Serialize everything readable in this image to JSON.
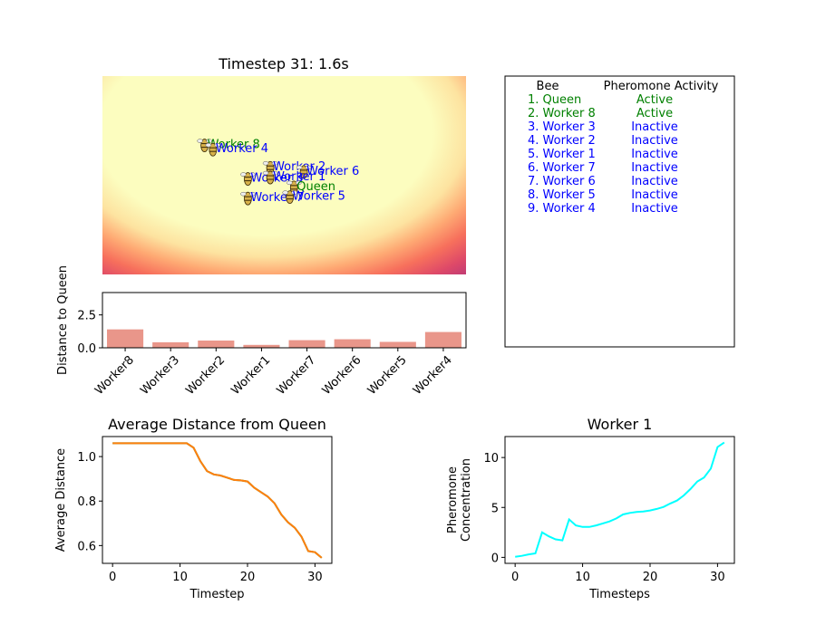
{
  "heatmap_panel": {
    "title": "Timestep 31: 1.6s",
    "bees": [
      {
        "label": "Worker 8",
        "color": "#008000",
        "x": 0.65,
        "y": 2.45
      },
      {
        "label": "Worker 4",
        "color": "#0000ff",
        "x": 0.95,
        "y": 2.6
      },
      {
        "label": "Worker 2",
        "color": "#0000ff",
        "x": 3.0,
        "y": 3.25
      },
      {
        "label": "Worker 6",
        "color": "#0000ff",
        "x": 4.2,
        "y": 3.4
      },
      {
        "label": "Worker 3",
        "color": "#0000ff",
        "x": 2.2,
        "y": 3.65
      },
      {
        "label": "Worker 1",
        "color": "#0000ff",
        "x": 3.0,
        "y": 3.6
      },
      {
        "label": "Queen",
        "color": "#008000",
        "x": 3.85,
        "y": 3.95
      },
      {
        "label": "Worker 7",
        "color": "#0000ff",
        "x": 2.2,
        "y": 4.35
      },
      {
        "label": "Worker 5",
        "color": "#0000ff",
        "x": 3.7,
        "y": 4.3
      }
    ]
  },
  "table_panel": {
    "headers": [
      "Bee",
      "Pheromone Activity"
    ],
    "rows": [
      {
        "name": "1. Queen",
        "status": "Active",
        "color": "#008000"
      },
      {
        "name": "2. Worker 8",
        "status": "Active",
        "color": "#008000"
      },
      {
        "name": "3. Worker 3",
        "status": "Inactive",
        "color": "#0000ff"
      },
      {
        "name": "4. Worker 2",
        "status": "Inactive",
        "color": "#0000ff"
      },
      {
        "name": "5. Worker 1",
        "status": "Inactive",
        "color": "#0000ff"
      },
      {
        "name": "6. Worker 7",
        "status": "Inactive",
        "color": "#0000ff"
      },
      {
        "name": "7. Worker 6",
        "status": "Inactive",
        "color": "#0000ff"
      },
      {
        "name": "8. Worker 5",
        "status": "Inactive",
        "color": "#0000ff"
      },
      {
        "name": "9. Worker 4",
        "status": "Inactive",
        "color": "#0000ff"
      }
    ]
  },
  "chart_data": [
    {
      "type": "bar",
      "title": "",
      "xlabel": "",
      "ylabel": "Distance to Queen",
      "categories": [
        "Worker8",
        "Worker3",
        "Worker2",
        "Worker1",
        "Worker7",
        "Worker6",
        "Worker5",
        "Worker4"
      ],
      "values": [
        1.4,
        0.42,
        0.55,
        0.22,
        0.58,
        0.65,
        0.45,
        1.2
      ],
      "ylim": [
        0,
        4.2
      ],
      "yticks": [
        "0.0",
        "2.5"
      ],
      "color": "#e9968a",
      "grid": false
    },
    {
      "type": "line",
      "title": "Average Distance from Queen",
      "xlabel": "Timestep",
      "ylabel": "Average Distance",
      "x": [
        0,
        1,
        2,
        3,
        4,
        5,
        6,
        7,
        8,
        9,
        10,
        11,
        12,
        13,
        14,
        15,
        16,
        17,
        18,
        19,
        20,
        21,
        22,
        23,
        24,
        25,
        26,
        27,
        28,
        29,
        30,
        31
      ],
      "series": [
        {
          "values": [
            1.06,
            1.06,
            1.06,
            1.06,
            1.06,
            1.06,
            1.06,
            1.06,
            1.06,
            1.06,
            1.06,
            1.06,
            1.04,
            0.98,
            0.935,
            0.92,
            0.915,
            0.905,
            0.895,
            0.893,
            0.888,
            0.86,
            0.84,
            0.82,
            0.79,
            0.74,
            0.705,
            0.68,
            0.64,
            0.575,
            0.57,
            0.545
          ],
          "color": "#2ca02c"
        },
        {
          "values": [
            1.06,
            1.06,
            1.06,
            1.06,
            1.06,
            1.06,
            1.06,
            1.06,
            1.06,
            1.06,
            1.06,
            1.06,
            1.04,
            0.98,
            0.935,
            0.92,
            0.915,
            0.905,
            0.895,
            0.893,
            0.888,
            0.86,
            0.84,
            0.82,
            0.79,
            0.74,
            0.705,
            0.68,
            0.64,
            0.575,
            0.57,
            0.545
          ],
          "color": "#ff7f0e"
        }
      ],
      "xlim": [
        -1.5,
        32.5
      ],
      "ylim": [
        0.52,
        1.09
      ],
      "xticks": [
        0,
        10,
        20,
        30
      ],
      "yticks": [
        0.6,
        0.8,
        1.0
      ],
      "grid": false
    },
    {
      "type": "line",
      "title": "Worker 1",
      "xlabel": "Timesteps",
      "ylabel": "Pheromone\nConcentration",
      "x": [
        0,
        1,
        2,
        3,
        4,
        5,
        6,
        7,
        8,
        9,
        10,
        11,
        12,
        13,
        14,
        15,
        16,
        17,
        18,
        19,
        20,
        21,
        22,
        23,
        24,
        25,
        26,
        27,
        28,
        29,
        30,
        31
      ],
      "series": [
        {
          "values": [
            0.05,
            0.15,
            0.3,
            0.4,
            2.5,
            2.1,
            1.8,
            1.7,
            3.8,
            3.2,
            3.05,
            3.05,
            3.2,
            3.4,
            3.6,
            3.9,
            4.3,
            4.45,
            4.55,
            4.6,
            4.7,
            4.85,
            5.05,
            5.4,
            5.7,
            6.2,
            6.85,
            7.6,
            8.0,
            8.9,
            11.05,
            11.5
          ],
          "color": "#00ffff"
        }
      ],
      "xlim": [
        -1.5,
        32.5
      ],
      "ylim": [
        -0.6,
        12.1
      ],
      "xticks": [
        0,
        10,
        20,
        30
      ],
      "yticks": [
        0,
        5,
        10
      ],
      "grid": false
    }
  ]
}
